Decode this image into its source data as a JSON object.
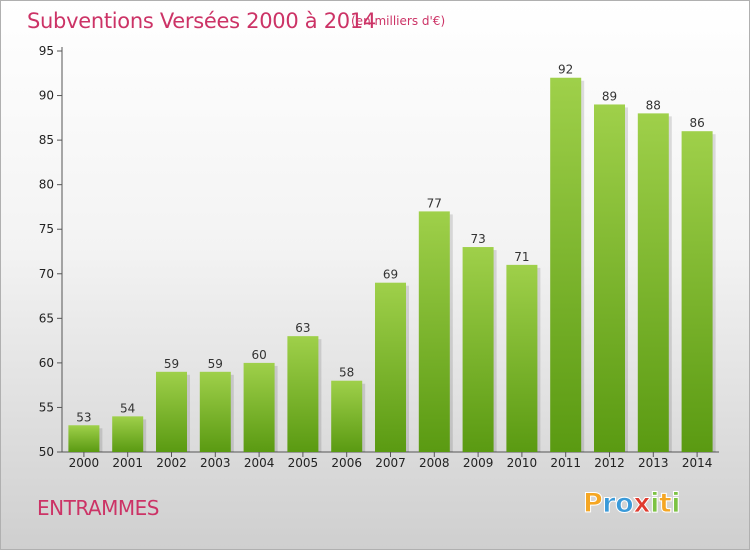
{
  "title": "Subventions Versées 2000 à 2014",
  "unit_note": "(en milliers d'€)",
  "commune": "ENTRAMMES",
  "logo": {
    "text": "Proxiti",
    "letters": [
      {
        "ch": "P",
        "color": "#f5a623"
      },
      {
        "ch": "r",
        "color": "#3a9ad9"
      },
      {
        "ch": "o",
        "color": "#3a9ad9"
      },
      {
        "ch": "x",
        "color": "#e03a2e"
      },
      {
        "ch": "i",
        "color": "#7cc243"
      },
      {
        "ch": "t",
        "color": "#f5a623"
      },
      {
        "ch": "i",
        "color": "#7cc243"
      }
    ]
  },
  "colors": {
    "title": "#cc3366",
    "bar_top": "#9fd04a",
    "bar_bottom": "#5a9a12",
    "axis": "#555555",
    "tick_text": "#222222"
  },
  "chart_data": {
    "type": "bar",
    "categories": [
      "2000",
      "2001",
      "2002",
      "2003",
      "2004",
      "2005",
      "2006",
      "2007",
      "2008",
      "2009",
      "2010",
      "2011",
      "2012",
      "2013",
      "2014"
    ],
    "values": [
      53,
      54,
      59,
      59,
      60,
      63,
      58,
      69,
      77,
      73,
      71,
      92,
      89,
      88,
      86
    ],
    "ylim": [
      50,
      95
    ],
    "yticks": [
      50,
      55,
      60,
      65,
      70,
      75,
      80,
      85,
      90,
      95
    ],
    "data_labels": true,
    "grid": false,
    "legend": "none"
  }
}
